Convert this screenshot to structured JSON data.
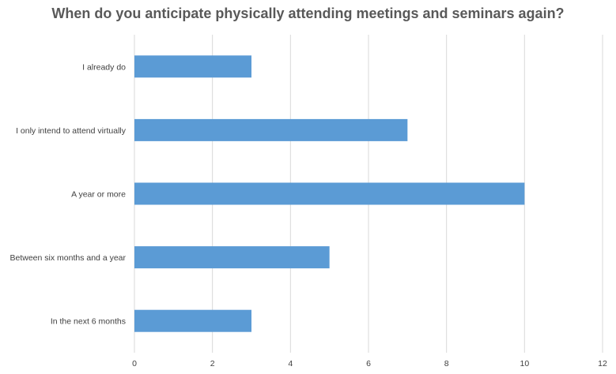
{
  "chart_data": {
    "type": "bar",
    "orientation": "horizontal",
    "title": "When do you anticipate physically attending meetings and seminars again?",
    "xlabel": "",
    "ylabel": "",
    "categories": [
      "I already do",
      "I only intend to attend virtually",
      "A year or more",
      "Between six months and a year",
      "In the next 6 months"
    ],
    "values": [
      3,
      7,
      10,
      5,
      3
    ],
    "xlim": [
      0,
      12
    ],
    "x_ticks": [
      "0",
      "2",
      "4",
      "6",
      "8",
      "10",
      "12"
    ],
    "grid": true,
    "legend": "none",
    "colors": {
      "bar": "#5b9bd5",
      "grid": "#d9d9d9",
      "text": "#404040",
      "title": "#595959"
    }
  }
}
